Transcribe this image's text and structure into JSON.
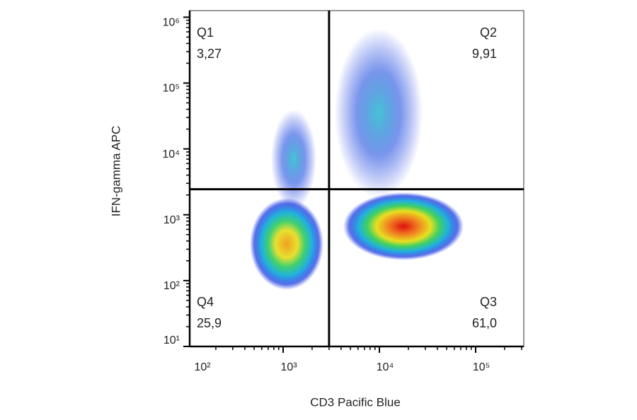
{
  "chart_data": {
    "type": "scatter",
    "x_label": "CD3 Pacific Blue",
    "y_label": "IFN-gamma APC",
    "x_scale": "log",
    "y_scale": "log",
    "xlim": [
      107,
      316000
    ],
    "ylim": [
      10,
      1260000
    ],
    "xticks": [
      {
        "value": 100,
        "label": "10²"
      },
      {
        "value": 1000,
        "label": "10³"
      },
      {
        "value": 10000,
        "label": "10⁴"
      },
      {
        "value": 100000,
        "label": "10⁵"
      }
    ],
    "yticks": [
      {
        "value": 10,
        "label": "10¹"
      },
      {
        "value": 100,
        "label": "10²"
      },
      {
        "value": 1000,
        "label": "10³"
      },
      {
        "value": 10000,
        "label": "10⁴"
      },
      {
        "value": 100000,
        "label": "10⁵"
      },
      {
        "value": 1000000,
        "label": "10⁶"
      }
    ],
    "gate_x": 3000,
    "gate_y": 2440,
    "quadrants": [
      {
        "name": "Q1",
        "label": "3,27",
        "corner": "top-left"
      },
      {
        "name": "Q2",
        "label": "9,91",
        "corner": "top-right"
      },
      {
        "name": "Q3",
        "label": "61,0",
        "corner": "bottom-right"
      },
      {
        "name": "Q4",
        "label": "25,9",
        "corner": "bottom-left"
      }
    ]
  }
}
